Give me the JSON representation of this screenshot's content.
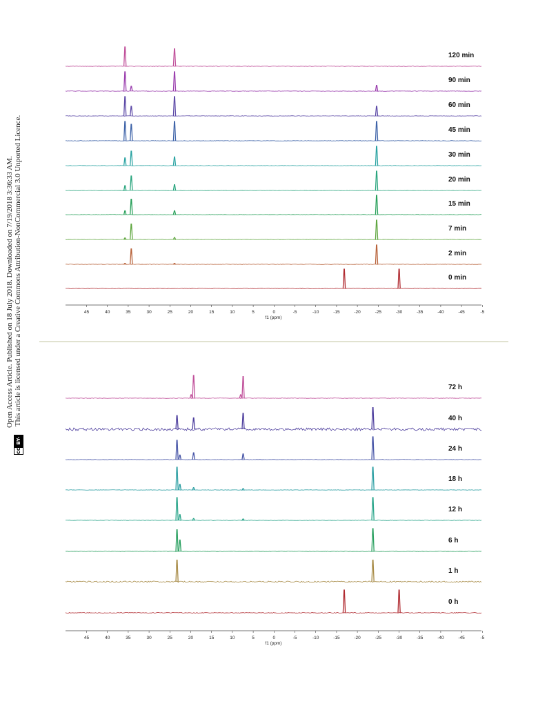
{
  "license_text": {
    "line1": "Open Access Article. Published on 18 July 2018. Downloaded on 7/19/2018 3:36:33 AM.",
    "line2": "This article is licensed under a Creative Commons Attribution-NonCommercial 3.0 Unported Licence.",
    "badge_cc": "cc",
    "badge_label": "BY-NC"
  },
  "colors": {
    "divider": "#d7d9c0",
    "axis": "#444444"
  },
  "chart_data": [
    {
      "type": "line",
      "subtype": "stacked NMR spectra",
      "xlabel": "f1 (ppm)",
      "xlim": [
        50,
        -50
      ],
      "x_reversed": true,
      "x_ticks": [
        "45",
        "40",
        "35",
        "30",
        "25",
        "20",
        "15",
        "10",
        "5",
        "0",
        "-5",
        "-10",
        "-15",
        "-20",
        "-25",
        "-30",
        "-35",
        "-40",
        "-45",
        "-5"
      ],
      "series": [
        {
          "name": "120 min",
          "color": "#c0509a",
          "noise": 0.3,
          "peaks": [
            {
              "x": 35.7,
              "y": 1.0
            },
            {
              "x": 23.8,
              "y": 0.9
            }
          ]
        },
        {
          "name": "90 min",
          "color": "#9b3fae",
          "noise": 0.3,
          "peaks": [
            {
              "x": 35.7,
              "y": 1.0
            },
            {
              "x": 34.2,
              "y": 0.25
            },
            {
              "x": 23.8,
              "y": 1.0
            },
            {
              "x": -24.8,
              "y": 0.3
            }
          ]
        },
        {
          "name": "60 min",
          "color": "#5d4aa7",
          "noise": 0.3,
          "peaks": [
            {
              "x": 35.7,
              "y": 1.0
            },
            {
              "x": 34.2,
              "y": 0.5
            },
            {
              "x": 23.8,
              "y": 1.0
            },
            {
              "x": -24.8,
              "y": 0.5
            }
          ]
        },
        {
          "name": "45 min",
          "color": "#3e63a8",
          "noise": 0.3,
          "peaks": [
            {
              "x": 35.7,
              "y": 1.0
            },
            {
              "x": 34.2,
              "y": 0.85
            },
            {
              "x": 23.8,
              "y": 1.0
            },
            {
              "x": -24.8,
              "y": 1.0
            }
          ]
        },
        {
          "name": "30 min",
          "color": "#2aa3a2",
          "noise": 0.3,
          "peaks": [
            {
              "x": 35.7,
              "y": 0.4
            },
            {
              "x": 34.2,
              "y": 0.75
            },
            {
              "x": 23.8,
              "y": 0.45
            },
            {
              "x": -24.8,
              "y": 1.0
            }
          ]
        },
        {
          "name": "20 min",
          "color": "#2aa57e",
          "noise": 0.3,
          "peaks": [
            {
              "x": 35.7,
              "y": 0.25
            },
            {
              "x": 34.2,
              "y": 0.75
            },
            {
              "x": 23.8,
              "y": 0.3
            },
            {
              "x": -24.8,
              "y": 1.0
            }
          ]
        },
        {
          "name": "15 min",
          "color": "#28a05a",
          "noise": 0.3,
          "peaks": [
            {
              "x": 35.7,
              "y": 0.2
            },
            {
              "x": 34.2,
              "y": 0.8
            },
            {
              "x": 23.8,
              "y": 0.2
            },
            {
              "x": -24.8,
              "y": 1.0
            }
          ]
        },
        {
          "name": "7 min",
          "color": "#5fa63f",
          "noise": 0.3,
          "peaks": [
            {
              "x": 35.7,
              "y": 0.08
            },
            {
              "x": 34.2,
              "y": 0.8
            },
            {
              "x": 23.8,
              "y": 0.1
            },
            {
              "x": -24.8,
              "y": 1.0
            }
          ]
        },
        {
          "name": "2 min",
          "color": "#b8633b",
          "noise": 0.3,
          "peaks": [
            {
              "x": 35.7,
              "y": 0.05
            },
            {
              "x": 34.2,
              "y": 0.8
            },
            {
              "x": 23.8,
              "y": 0.05
            },
            {
              "x": -24.8,
              "y": 1.0
            }
          ]
        },
        {
          "name": "0 min",
          "color": "#b02a30",
          "noise": 0.5,
          "peaks": [
            {
              "x": -17.0,
              "y": 1.0
            },
            {
              "x": -30.2,
              "y": 1.0
            }
          ]
        }
      ]
    },
    {
      "type": "line",
      "subtype": "stacked NMR spectra",
      "xlabel": "f1 (ppm)",
      "xlim": [
        50,
        -50
      ],
      "x_reversed": true,
      "x_ticks": [
        "45",
        "40",
        "35",
        "30",
        "25",
        "20",
        "15",
        "10",
        "5",
        "0",
        "-5",
        "-10",
        "-15",
        "-20",
        "-25",
        "-30",
        "-35",
        "-40",
        "-45",
        "-5"
      ],
      "series": [
        {
          "name": "72 h",
          "color": "#c0509a",
          "noise": 0.3,
          "peaks": [
            {
              "x": 19.2,
              "y": 1.0
            },
            {
              "x": 7.3,
              "y": 0.95
            },
            {
              "x": 19.8,
              "y": 0.15
            },
            {
              "x": 7.9,
              "y": 0.15
            }
          ]
        },
        {
          "name": "40 h",
          "color": "#4e3f9e",
          "noise": 2.0,
          "peaks": [
            {
              "x": 23.2,
              "y": 0.6
            },
            {
              "x": 19.2,
              "y": 0.5
            },
            {
              "x": 7.3,
              "y": 0.7
            },
            {
              "x": -23.9,
              "y": 0.95
            }
          ]
        },
        {
          "name": "24 h",
          "color": "#4755a7",
          "noise": 0.3,
          "peaks": [
            {
              "x": 23.2,
              "y": 0.85
            },
            {
              "x": 22.5,
              "y": 0.2
            },
            {
              "x": 19.2,
              "y": 0.3
            },
            {
              "x": 7.3,
              "y": 0.25
            },
            {
              "x": -23.9,
              "y": 1.0
            }
          ]
        },
        {
          "name": "18 h",
          "color": "#2d9fa3",
          "noise": 0.3,
          "peaks": [
            {
              "x": 23.2,
              "y": 1.0
            },
            {
              "x": 22.5,
              "y": 0.25
            },
            {
              "x": 19.2,
              "y": 0.1
            },
            {
              "x": 7.3,
              "y": 0.06
            },
            {
              "x": -23.9,
              "y": 1.0
            }
          ]
        },
        {
          "name": "12 h",
          "color": "#2aa58a",
          "noise": 0.3,
          "peaks": [
            {
              "x": 23.2,
              "y": 1.0
            },
            {
              "x": 22.5,
              "y": 0.25
            },
            {
              "x": 19.2,
              "y": 0.08
            },
            {
              "x": 7.3,
              "y": 0.06
            },
            {
              "x": -23.9,
              "y": 1.0
            }
          ]
        },
        {
          "name": "6 h",
          "color": "#2aa060",
          "noise": 0.3,
          "peaks": [
            {
              "x": 23.2,
              "y": 0.95
            },
            {
              "x": 22.5,
              "y": 0.5
            },
            {
              "x": -23.9,
              "y": 1.0
            }
          ]
        },
        {
          "name": "1 h",
          "color": "#a78a45",
          "noise": 1.0,
          "peaks": [
            {
              "x": 23.2,
              "y": 0.95
            },
            {
              "x": -23.9,
              "y": 0.95
            }
          ]
        },
        {
          "name": "0 h",
          "color": "#b02a30",
          "noise": 0.5,
          "peaks": [
            {
              "x": -17.0,
              "y": 1.0
            },
            {
              "x": -30.2,
              "y": 1.0
            }
          ]
        }
      ]
    }
  ]
}
